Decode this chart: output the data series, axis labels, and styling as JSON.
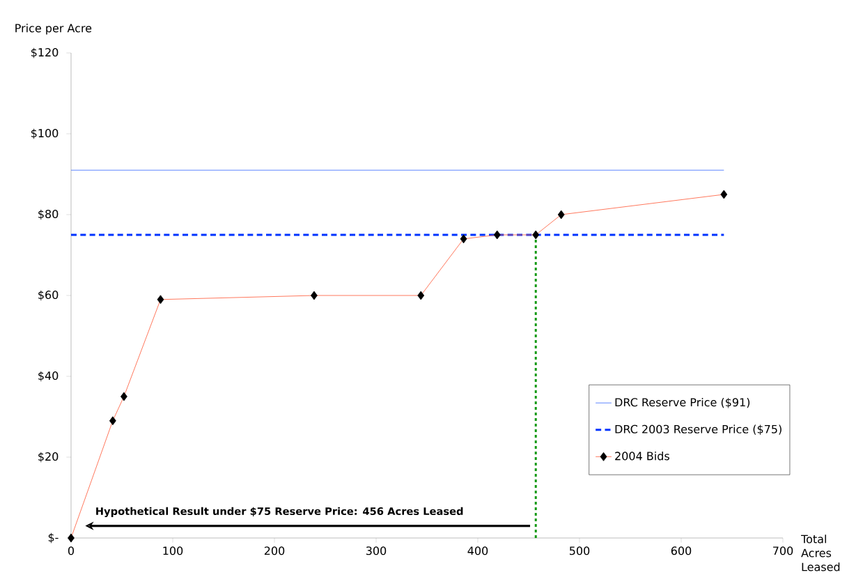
{
  "chart_data": {
    "type": "line",
    "ylabel": "Price per Acre",
    "xlabel": "Total Acres Leased",
    "xlim": [
      0,
      700
    ],
    "xticks": [
      0,
      100,
      200,
      300,
      400,
      500,
      600,
      700
    ],
    "ylim": [
      0,
      120
    ],
    "yticks": [
      {
        "value": 0,
        "label": "$-"
      },
      {
        "value": 20,
        "label": "$20"
      },
      {
        "value": 40,
        "label": "$40"
      },
      {
        "value": 60,
        "label": "$60"
      },
      {
        "value": 80,
        "label": "$80"
      },
      {
        "value": 100,
        "label": "$100"
      },
      {
        "value": 120,
        "label": "$120"
      }
    ],
    "grid": false,
    "legend": "bottom right",
    "series": [
      {
        "name": "DRC Reserve Price ($91)",
        "color": "#3366ff",
        "x": [
          0,
          642
        ],
        "values": [
          91,
          91
        ],
        "line_style": "solid",
        "marker": "none"
      },
      {
        "name": "DRC 2003 Reserve Price ($75)",
        "color": "#0033ff",
        "x": [
          0,
          642
        ],
        "values": [
          75,
          75
        ],
        "line_style": "dashed",
        "marker": "none"
      },
      {
        "name": "2004 Bids",
        "color": "#ff5533",
        "x": [
          0,
          41,
          52,
          88,
          239,
          344,
          386,
          419,
          457,
          482,
          642
        ],
        "values": [
          0,
          29,
          35,
          59,
          60,
          60,
          74,
          75,
          75,
          80,
          85
        ],
        "line_style": "solid",
        "marker": "diamond"
      },
      {
        "color": "#119911",
        "x": [
          457,
          457
        ],
        "values": [
          0,
          75
        ],
        "line_style": "dotted",
        "marker": "none"
      }
    ],
    "annotations": [
      "**Hypothetical Result under $75 Reserve Price: 456 Acres Leased**"
    ]
  }
}
